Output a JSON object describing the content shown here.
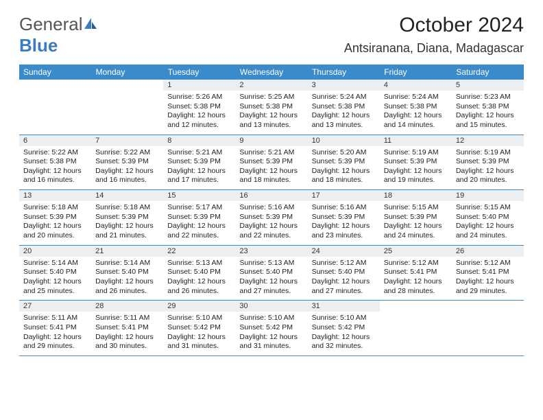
{
  "logo": {
    "word1": "General",
    "word2": "Blue"
  },
  "title": "October 2024",
  "location": "Antsiranana, Diana, Madagascar",
  "colors": {
    "header_bg": "#3b8aca",
    "header_text": "#ffffff",
    "daynum_bg": "#eceff2",
    "border": "#3b8aca",
    "logo_accent": "#3b7bc4",
    "text": "#222222"
  },
  "days": [
    "Sunday",
    "Monday",
    "Tuesday",
    "Wednesday",
    "Thursday",
    "Friday",
    "Saturday"
  ],
  "weeks": [
    [
      null,
      null,
      {
        "n": "1",
        "sr": "5:26 AM",
        "ss": "5:38 PM",
        "dl": "12 hours and 12 minutes."
      },
      {
        "n": "2",
        "sr": "5:25 AM",
        "ss": "5:38 PM",
        "dl": "12 hours and 13 minutes."
      },
      {
        "n": "3",
        "sr": "5:24 AM",
        "ss": "5:38 PM",
        "dl": "12 hours and 13 minutes."
      },
      {
        "n": "4",
        "sr": "5:24 AM",
        "ss": "5:38 PM",
        "dl": "12 hours and 14 minutes."
      },
      {
        "n": "5",
        "sr": "5:23 AM",
        "ss": "5:38 PM",
        "dl": "12 hours and 15 minutes."
      }
    ],
    [
      {
        "n": "6",
        "sr": "5:22 AM",
        "ss": "5:38 PM",
        "dl": "12 hours and 16 minutes."
      },
      {
        "n": "7",
        "sr": "5:22 AM",
        "ss": "5:39 PM",
        "dl": "12 hours and 16 minutes."
      },
      {
        "n": "8",
        "sr": "5:21 AM",
        "ss": "5:39 PM",
        "dl": "12 hours and 17 minutes."
      },
      {
        "n": "9",
        "sr": "5:21 AM",
        "ss": "5:39 PM",
        "dl": "12 hours and 18 minutes."
      },
      {
        "n": "10",
        "sr": "5:20 AM",
        "ss": "5:39 PM",
        "dl": "12 hours and 18 minutes."
      },
      {
        "n": "11",
        "sr": "5:19 AM",
        "ss": "5:39 PM",
        "dl": "12 hours and 19 minutes."
      },
      {
        "n": "12",
        "sr": "5:19 AM",
        "ss": "5:39 PM",
        "dl": "12 hours and 20 minutes."
      }
    ],
    [
      {
        "n": "13",
        "sr": "5:18 AM",
        "ss": "5:39 PM",
        "dl": "12 hours and 20 minutes."
      },
      {
        "n": "14",
        "sr": "5:18 AM",
        "ss": "5:39 PM",
        "dl": "12 hours and 21 minutes."
      },
      {
        "n": "15",
        "sr": "5:17 AM",
        "ss": "5:39 PM",
        "dl": "12 hours and 22 minutes."
      },
      {
        "n": "16",
        "sr": "5:16 AM",
        "ss": "5:39 PM",
        "dl": "12 hours and 22 minutes."
      },
      {
        "n": "17",
        "sr": "5:16 AM",
        "ss": "5:39 PM",
        "dl": "12 hours and 23 minutes."
      },
      {
        "n": "18",
        "sr": "5:15 AM",
        "ss": "5:39 PM",
        "dl": "12 hours and 24 minutes."
      },
      {
        "n": "19",
        "sr": "5:15 AM",
        "ss": "5:40 PM",
        "dl": "12 hours and 24 minutes."
      }
    ],
    [
      {
        "n": "20",
        "sr": "5:14 AM",
        "ss": "5:40 PM",
        "dl": "12 hours and 25 minutes."
      },
      {
        "n": "21",
        "sr": "5:14 AM",
        "ss": "5:40 PM",
        "dl": "12 hours and 26 minutes."
      },
      {
        "n": "22",
        "sr": "5:13 AM",
        "ss": "5:40 PM",
        "dl": "12 hours and 26 minutes."
      },
      {
        "n": "23",
        "sr": "5:13 AM",
        "ss": "5:40 PM",
        "dl": "12 hours and 27 minutes."
      },
      {
        "n": "24",
        "sr": "5:12 AM",
        "ss": "5:40 PM",
        "dl": "12 hours and 27 minutes."
      },
      {
        "n": "25",
        "sr": "5:12 AM",
        "ss": "5:41 PM",
        "dl": "12 hours and 28 minutes."
      },
      {
        "n": "26",
        "sr": "5:12 AM",
        "ss": "5:41 PM",
        "dl": "12 hours and 29 minutes."
      }
    ],
    [
      {
        "n": "27",
        "sr": "5:11 AM",
        "ss": "5:41 PM",
        "dl": "12 hours and 29 minutes."
      },
      {
        "n": "28",
        "sr": "5:11 AM",
        "ss": "5:41 PM",
        "dl": "12 hours and 30 minutes."
      },
      {
        "n": "29",
        "sr": "5:10 AM",
        "ss": "5:42 PM",
        "dl": "12 hours and 31 minutes."
      },
      {
        "n": "30",
        "sr": "5:10 AM",
        "ss": "5:42 PM",
        "dl": "12 hours and 31 minutes."
      },
      {
        "n": "31",
        "sr": "5:10 AM",
        "ss": "5:42 PM",
        "dl": "12 hours and 32 minutes."
      },
      null,
      null
    ]
  ],
  "labels": {
    "sunrise": "Sunrise:",
    "sunset": "Sunset:",
    "daylight": "Daylight:"
  }
}
